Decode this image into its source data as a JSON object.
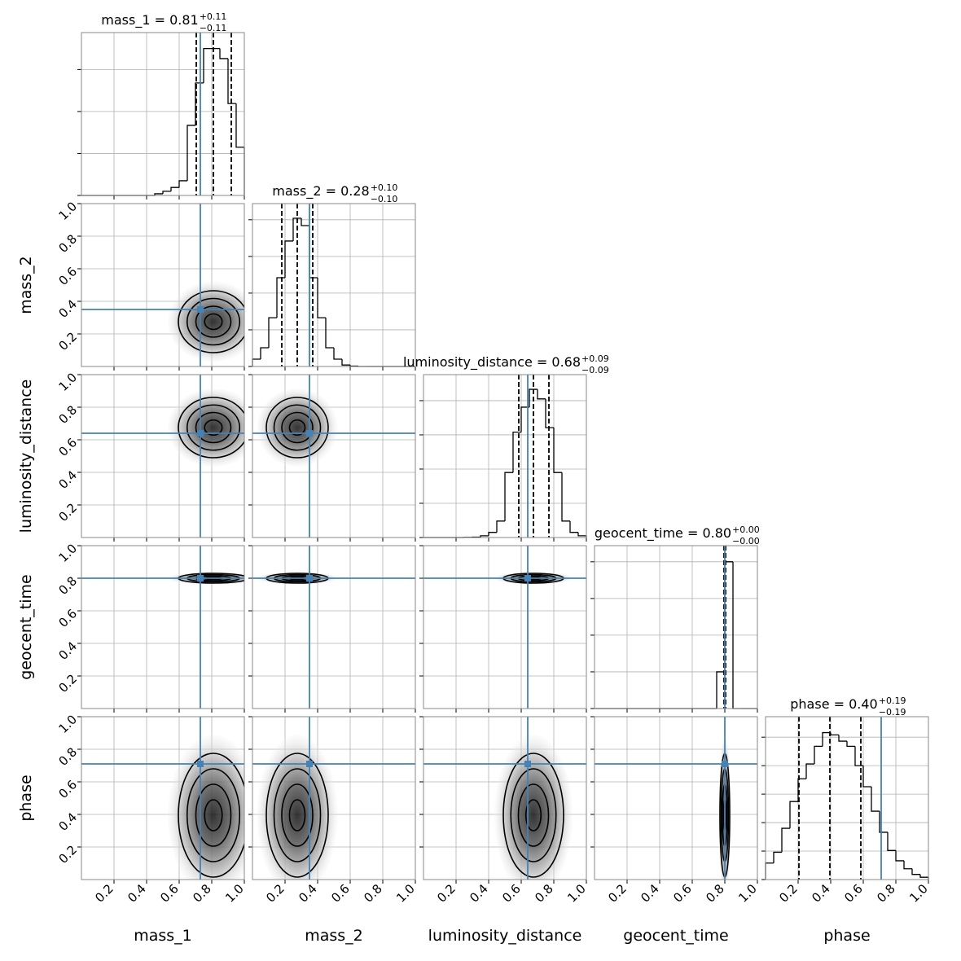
{
  "chart_data": {
    "type": "corner",
    "xlim": [
      0,
      1
    ],
    "ticks": [
      0.2,
      0.4,
      0.6,
      0.8,
      {
        "value": 1,
        "label": "1.0"
      }
    ],
    "bins": [
      0,
      0.05,
      0.1,
      0.15,
      0.2,
      0.25,
      0.3,
      0.35,
      0.4,
      0.45,
      0.5,
      0.55,
      0.6,
      0.65,
      0.7,
      0.75,
      0.8,
      0.85,
      0.9,
      0.95,
      1.0
    ],
    "truth_color": "#4682b4",
    "grid": true,
    "parameters": [
      {
        "name": "mass_1",
        "title": {
          "text": "mass_1 = 0.81",
          "upper": "+0.11",
          "lower": "−0.11"
        },
        "quantiles": [
          0.705,
          0.81,
          0.92
        ],
        "truth": 0.73,
        "counts": [
          0,
          0,
          0,
          0,
          0,
          0,
          0,
          0,
          0,
          40,
          100,
          190,
          350,
          1670,
          2680,
          3500,
          3500,
          3260,
          2190,
          1150
        ],
        "ylim": [
          0,
          3880
        ],
        "yticks": [
          0,
          1000,
          2000,
          3000
        ]
      },
      {
        "name": "mass_2",
        "title": {
          "text": "mass_2 = 0.28",
          "upper": "+0.10",
          "lower": "−0.10"
        },
        "quantiles": [
          0.18,
          0.275,
          0.37
        ],
        "truth": 0.35,
        "counts": [
          200,
          510,
          1330,
          2420,
          3420,
          4040,
          3840,
          2420,
          1330,
          510,
          200,
          40,
          10,
          0,
          0,
          0,
          0,
          0,
          0,
          0
        ],
        "ylim": [
          0,
          4440
        ],
        "yticks": [
          0,
          1000,
          2000,
          3000,
          4000
        ]
      },
      {
        "name": "luminosity_distance",
        "title": {
          "text": "luminosity_distance = 0.68",
          "upper": "+0.09",
          "lower": "−0.09"
        },
        "quantiles": [
          0.585,
          0.675,
          0.77
        ],
        "truth": 0.64,
        "counts": [
          0,
          0,
          0,
          0,
          0,
          5,
          10,
          50,
          150,
          480,
          1900,
          3080,
          3810,
          4330,
          4050,
          3210,
          1900,
          480,
          150,
          50
        ],
        "ylim": [
          0,
          4760
        ],
        "yticks": [
          0,
          1000,
          2000,
          3000,
          4000
        ]
      },
      {
        "name": "geocent_time",
        "title": {
          "text": "geocent_time = 0.80",
          "upper": "+0.00",
          "lower": "−0.00"
        },
        "quantiles": [
          0.795,
          0.8,
          0.805
        ],
        "truth": 0.8,
        "counts": [
          0,
          0,
          0,
          0,
          0,
          0,
          0,
          0,
          0,
          0,
          0,
          0,
          0,
          0,
          0,
          5000,
          20000,
          0,
          0,
          0
        ],
        "ylim": [
          0,
          22200
        ],
        "yticks": [
          0,
          5000,
          10000,
          15000,
          20000
        ]
      },
      {
        "name": "phase",
        "title": {
          "text": "phase = 0.40",
          "upper": "+0.19",
          "lower": "−0.19"
        },
        "quantiles": [
          0.205,
          0.395,
          0.585
        ],
        "truth": 0.71,
        "counts": [
          290,
          480,
          900,
          1370,
          1770,
          2030,
          2340,
          2580,
          2540,
          2430,
          2340,
          2000,
          1630,
          1200,
          830,
          510,
          330,
          190,
          90,
          40
        ],
        "ylim": [
          0,
          2860
        ],
        "yticks": [
          0,
          500,
          1000,
          1500,
          2000,
          2500
        ]
      }
    ]
  }
}
